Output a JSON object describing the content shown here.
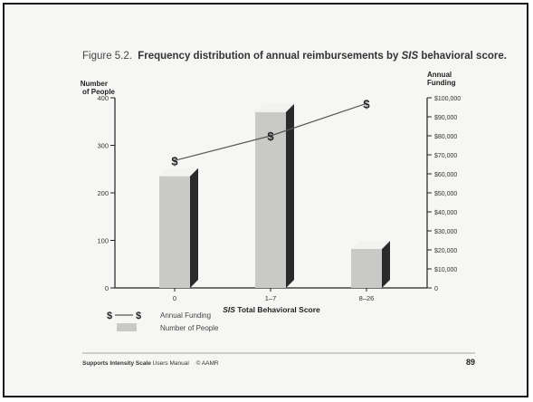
{
  "figure": {
    "label": "Figure 5.2.",
    "title_pre": "Frequency distribution of annual reimbursements by ",
    "title_italic": "SIS",
    "title_post": " behavioral score."
  },
  "footer": {
    "bold": "Supports Intensity Scale",
    "rest": " Users Manual",
    "copyright": "© AAMR",
    "page_number": "89"
  },
  "legend": {
    "line_label": "Annual Funding",
    "bar_label": "Number of People",
    "marker_glyph": "$"
  },
  "chart_data": {
    "type": "bar",
    "title": "Frequency distribution of annual reimbursements by SIS behavioral score.",
    "xlabel_italic": "SIS",
    "xlabel_rest": " Total Behavioral Score",
    "categories": [
      "0",
      "1–7",
      "8–26"
    ],
    "y_left": {
      "label_line1": "Number",
      "label_line2": "of People",
      "range": [
        0,
        400
      ],
      "ticks": [
        0,
        100,
        200,
        300,
        400
      ]
    },
    "y_right": {
      "label_line1": "Annual",
      "label_line2": "Funding",
      "range": [
        0,
        100000
      ],
      "ticks": [
        0,
        10000,
        20000,
        30000,
        40000,
        50000,
        60000,
        70000,
        80000,
        90000,
        100000
      ],
      "tick_labels": [
        "0",
        "$10,000",
        "$20,000",
        "$30,000",
        "$40,000",
        "$50,000",
        "$60,000",
        "$70,000",
        "$80,000",
        "$90,000",
        "$100,000"
      ]
    },
    "series": [
      {
        "name": "Number of People",
        "type": "bar",
        "axis": "left",
        "values": [
          235,
          370,
          82
        ]
      },
      {
        "name": "Annual Funding",
        "type": "line",
        "axis": "right",
        "values": [
          67000,
          80000,
          97000
        ]
      }
    ],
    "colors": {
      "bar_front": "#c9c9c7",
      "bar_side": "#2a2a2a",
      "bar_top": "#f2f2f0",
      "line": "#555555",
      "marker": "#222222"
    }
  }
}
